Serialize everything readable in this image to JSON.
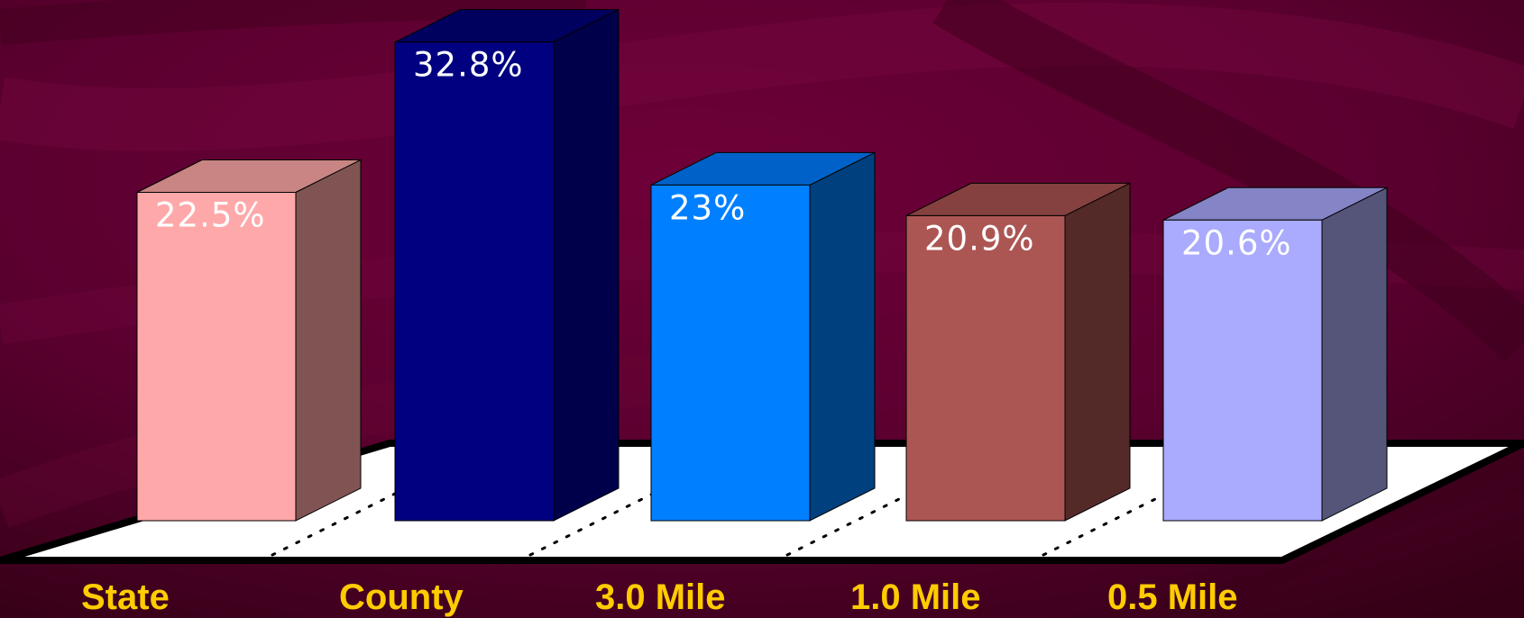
{
  "chart_data": {
    "type": "bar",
    "style": "3d",
    "categories": [
      "State",
      "County",
      "3.0 Mile",
      "1.0 Mile",
      "0.5 Mile"
    ],
    "values": [
      22.5,
      32.8,
      23,
      20.9,
      20.6
    ],
    "data_labels": [
      "22.5%",
      "32.8%",
      "23%",
      "20.9%",
      "20.6%"
    ],
    "bar_colors": [
      {
        "front": "#ffa8aa",
        "top": "#c98583",
        "side": "#805452"
      },
      {
        "front": "#000080",
        "top": "#00005e",
        "side": "#00004a"
      },
      {
        "front": "#0080ff",
        "top": "#0062c8",
        "side": "#00407e"
      },
      {
        "front": "#ac5654",
        "top": "#85413f",
        "side": "#542a28"
      },
      {
        "front": "#aaaafe",
        "top": "#8484c6",
        "side": "#55557a"
      }
    ],
    "data_label_color": "#ffffff",
    "category_label_color": "#ffcc00",
    "floor_color": "#ffffff",
    "background_color": "#5b0030",
    "grid": false,
    "legend": "none",
    "title": "",
    "xlabel": "",
    "ylabel": ""
  }
}
